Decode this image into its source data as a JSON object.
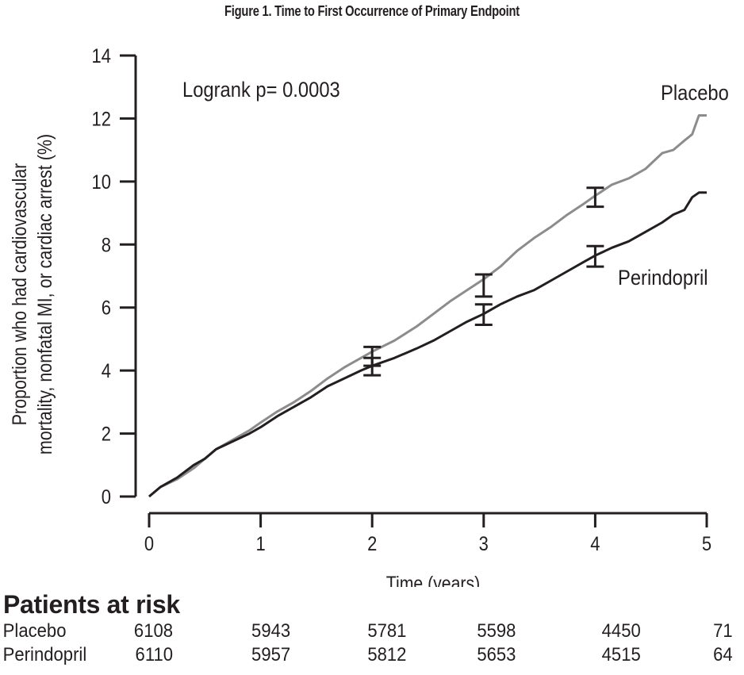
{
  "figure_title": "Figure 1. Time to First Occurrence of Primary Endpoint",
  "chart_data": {
    "type": "line",
    "title": "Figure 1. Time to First Occurrence of Primary Endpoint",
    "xlabel": "Time (years)",
    "ylabel_lines": [
      "Proportion who had cardiovascular",
      "mortality, nonfatal MI, or cardiac arrest (%)"
    ],
    "xlim": [
      0,
      5
    ],
    "ylim": [
      0,
      14
    ],
    "xticks": [
      0,
      1,
      2,
      3,
      4,
      5
    ],
    "yticks": [
      0,
      2,
      4,
      6,
      8,
      10,
      12,
      14
    ],
    "annotation": "Logrank p= 0.0003",
    "series": [
      {
        "name": "Placebo",
        "color": "#8c8c8c",
        "x": [
          0,
          0.1,
          0.25,
          0.4,
          0.5,
          0.6,
          0.75,
          0.9,
          1.0,
          1.15,
          1.3,
          1.45,
          1.6,
          1.75,
          1.9,
          2.0,
          2.2,
          2.4,
          2.55,
          2.7,
          2.85,
          3.0,
          3.15,
          3.3,
          3.45,
          3.6,
          3.75,
          3.9,
          4.0,
          4.15,
          4.3,
          4.45,
          4.6,
          4.7,
          4.8,
          4.87,
          4.93,
          5.0
        ],
        "y": [
          0,
          0.3,
          0.55,
          0.9,
          1.2,
          1.5,
          1.8,
          2.1,
          2.35,
          2.7,
          3.0,
          3.35,
          3.75,
          4.1,
          4.4,
          4.6,
          4.95,
          5.4,
          5.8,
          6.2,
          6.55,
          6.9,
          7.3,
          7.8,
          8.2,
          8.55,
          8.95,
          9.3,
          9.55,
          9.9,
          10.1,
          10.4,
          10.9,
          11.0,
          11.3,
          11.5,
          12.1,
          12.1
        ],
        "error_bars": [
          {
            "x": 2,
            "low": 4.15,
            "high": 4.75
          },
          {
            "x": 3,
            "low": 6.35,
            "high": 7.05
          },
          {
            "x": 4,
            "low": 9.2,
            "high": 9.8
          }
        ]
      },
      {
        "name": "Perindopril",
        "color": "#231f20",
        "x": [
          0,
          0.1,
          0.25,
          0.4,
          0.5,
          0.6,
          0.75,
          0.9,
          1.0,
          1.15,
          1.3,
          1.45,
          1.6,
          1.75,
          1.9,
          2.0,
          2.2,
          2.4,
          2.55,
          2.7,
          2.85,
          3.0,
          3.15,
          3.3,
          3.45,
          3.6,
          3.75,
          3.9,
          4.0,
          4.15,
          4.3,
          4.45,
          4.6,
          4.7,
          4.8,
          4.87,
          4.93,
          5.0
        ],
        "y": [
          0,
          0.3,
          0.6,
          1.0,
          1.2,
          1.5,
          1.75,
          2.0,
          2.2,
          2.55,
          2.85,
          3.15,
          3.5,
          3.75,
          4.0,
          4.15,
          4.4,
          4.7,
          4.95,
          5.25,
          5.55,
          5.8,
          6.1,
          6.35,
          6.55,
          6.85,
          7.15,
          7.45,
          7.65,
          7.9,
          8.1,
          8.4,
          8.7,
          8.95,
          9.1,
          9.5,
          9.65,
          9.65
        ],
        "error_bars": [
          {
            "x": 2,
            "low": 3.85,
            "high": 4.4
          },
          {
            "x": 3,
            "low": 5.45,
            "high": 6.1
          },
          {
            "x": 4,
            "low": 7.3,
            "high": 7.95
          }
        ]
      }
    ]
  },
  "risk_table": {
    "title": "Patients at risk",
    "rows": [
      {
        "label": "Placebo",
        "values": [
          "6108",
          "5943",
          "5781",
          "5598",
          "4450",
          "71"
        ]
      },
      {
        "label": "Perindopril",
        "values": [
          "6110",
          "5957",
          "5812",
          "5653",
          "4515",
          "64"
        ]
      }
    ]
  }
}
